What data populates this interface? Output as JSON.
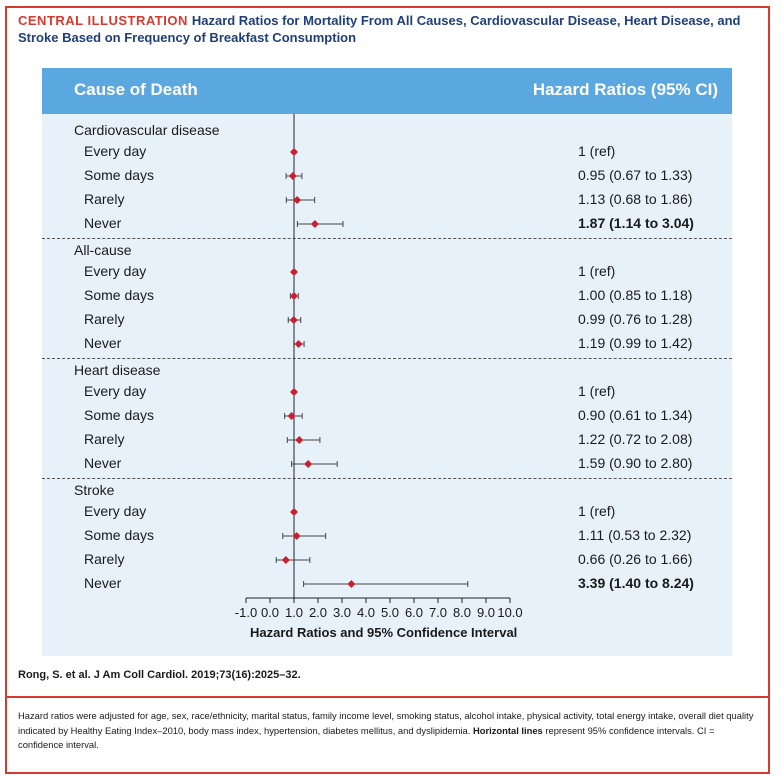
{
  "title": {
    "lead": "CENTRAL ILLUSTRATION",
    "text": "Hazard Ratios for Mortality From All Causes, Cardiovascular Disease, Heart Disease, and Stroke Based on Frequency of Breakfast Consumption"
  },
  "table": {
    "col_left": "Cause of Death",
    "col_right": "Hazard Ratios (95% CI)"
  },
  "chart_data": {
    "type": "forest",
    "xlabel": "Hazard Ratios and 95% Confidence Interval",
    "xlim": [
      -1.0,
      10.0
    ],
    "xticks": [
      -1.0,
      0.0,
      1.0,
      2.0,
      3.0,
      4.0,
      5.0,
      6.0,
      7.0,
      8.0,
      9.0,
      10.0
    ],
    "xtick_labels": [
      "-1.0",
      "0.0",
      "1.0",
      "2.0",
      "3.0",
      "4.0",
      "5.0",
      "6.0",
      "7.0",
      "8.0",
      "9.0",
      "10.0"
    ],
    "reference_line": 1.0,
    "marker_color": "#c8202f",
    "groups": [
      {
        "name": "Cardiovascular disease",
        "rows": [
          {
            "label": "Every day",
            "hr": 1.0,
            "lo": 1.0,
            "hi": 1.0,
            "text": "1 (ref)",
            "bold": false
          },
          {
            "label": "Some days",
            "hr": 0.95,
            "lo": 0.67,
            "hi": 1.33,
            "text": "0.95 (0.67 to 1.33)",
            "bold": false
          },
          {
            "label": "Rarely",
            "hr": 1.13,
            "lo": 0.68,
            "hi": 1.86,
            "text": "1.13 (0.68 to 1.86)",
            "bold": false
          },
          {
            "label": "Never",
            "hr": 1.87,
            "lo": 1.14,
            "hi": 3.04,
            "text": "1.87 (1.14 to 3.04)",
            "bold": true
          }
        ]
      },
      {
        "name": "All-cause",
        "rows": [
          {
            "label": "Every day",
            "hr": 1.0,
            "lo": 1.0,
            "hi": 1.0,
            "text": "1 (ref)",
            "bold": false
          },
          {
            "label": "Some days",
            "hr": 1.0,
            "lo": 0.85,
            "hi": 1.18,
            "text": "1.00 (0.85 to 1.18)",
            "bold": false
          },
          {
            "label": "Rarely",
            "hr": 0.99,
            "lo": 0.76,
            "hi": 1.28,
            "text": "0.99 (0.76 to 1.28)",
            "bold": false
          },
          {
            "label": "Never",
            "hr": 1.19,
            "lo": 0.99,
            "hi": 1.42,
            "text": "1.19 (0.99 to 1.42)",
            "bold": false
          }
        ]
      },
      {
        "name": "Heart disease",
        "rows": [
          {
            "label": "Every day",
            "hr": 1.0,
            "lo": 1.0,
            "hi": 1.0,
            "text": "1 (ref)",
            "bold": false
          },
          {
            "label": "Some days",
            "hr": 0.9,
            "lo": 0.61,
            "hi": 1.34,
            "text": "0.90 (0.61 to 1.34)",
            "bold": false
          },
          {
            "label": "Rarely",
            "hr": 1.22,
            "lo": 0.72,
            "hi": 2.08,
            "text": "1.22 (0.72 to 2.08)",
            "bold": false
          },
          {
            "label": "Never",
            "hr": 1.59,
            "lo": 0.9,
            "hi": 2.8,
            "text": "1.59 (0.90 to 2.80)",
            "bold": false
          }
        ]
      },
      {
        "name": "Stroke",
        "rows": [
          {
            "label": "Every day",
            "hr": 1.0,
            "lo": 1.0,
            "hi": 1.0,
            "text": "1 (ref)",
            "bold": false
          },
          {
            "label": "Some days",
            "hr": 1.11,
            "lo": 0.53,
            "hi": 2.32,
            "text": "1.11 (0.53 to 2.32)",
            "bold": false
          },
          {
            "label": "Rarely",
            "hr": 0.66,
            "lo": 0.26,
            "hi": 1.66,
            "text": "0.66 (0.26 to 1.66)",
            "bold": false
          },
          {
            "label": "Never",
            "hr": 3.39,
            "lo": 1.4,
            "hi": 8.24,
            "text": "3.39 (1.40 to 8.24)",
            "bold": true
          }
        ]
      }
    ]
  },
  "citation": "Rong, S. et al. J Am Coll Cardiol. 2019;73(16):2025–32.",
  "footnote": {
    "part1": "Hazard ratios were adjusted for age, sex, race/ethnicity, marital status, family income level, smoking status, alcohol intake, physical activity, total energy intake, overall diet quality indicated by Healthy Eating Index–2010, body mass index, hypertension, diabetes mellitus, and dyslipidemia. ",
    "bold": "Horizontal lines",
    "part2": " represent 95% confidence intervals. CI = confidence interval."
  }
}
